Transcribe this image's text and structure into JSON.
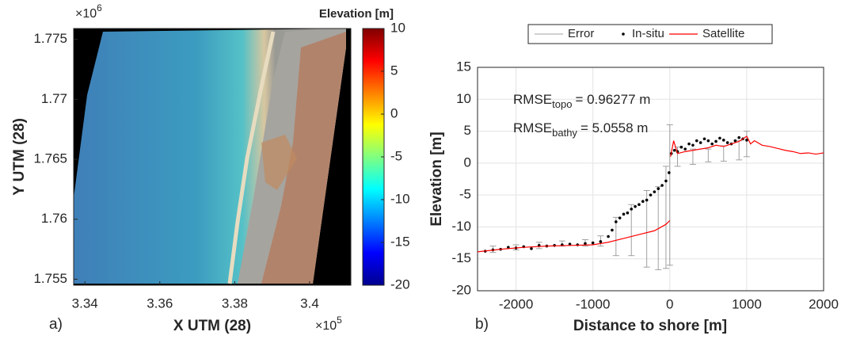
{
  "chart_data": [
    {
      "type": "map",
      "panel_label": "a)",
      "xlabel": "X UTM (28)",
      "ylabel": "Y UTM (28)",
      "x_multiplier": {
        "base": "×10",
        "power": "5"
      },
      "y_multiplier": {
        "base": "×10",
        "power": "6"
      },
      "xlim": [
        3.337,
        3.411
      ],
      "xticks": [
        3.34,
        3.36,
        3.38,
        3.4
      ],
      "ylim": [
        1.7545,
        1.7759
      ],
      "yticks": [
        1.755,
        1.76,
        1.765,
        1.77,
        1.775
      ],
      "colorbar": {
        "label": "Elevation [m]",
        "lim": [
          -20,
          10
        ],
        "ticks": [
          -20,
          -15,
          -10,
          -5,
          0,
          5,
          10
        ],
        "colormap": [
          "#00008f",
          "#0000ff",
          "#0080ff",
          "#00ffff",
          "#80ff80",
          "#ffff00",
          "#ff8000",
          "#ff0000",
          "#800000"
        ]
      }
    },
    {
      "type": "line",
      "panel_label": "b)",
      "xlabel": "Distance to shore [m]",
      "ylabel": "Elevation [m]",
      "xlim": [
        -2500,
        2000
      ],
      "xticks": [
        -2000,
        -1000,
        0,
        1000,
        2000
      ],
      "ylim": [
        -20,
        15
      ],
      "yticks": [
        -20,
        -15,
        -10,
        -5,
        0,
        5,
        10,
        15
      ],
      "grid": true,
      "legend": "top",
      "annotations": [
        {
          "text": "RMSE",
          "sub": "topo",
          "rest": "= 0.96277 m"
        },
        {
          "text": "RMSE",
          "sub": "bathy",
          "rest": "= 5.0558 m"
        }
      ],
      "series": [
        {
          "name": "Error",
          "color": "#a0a0a0",
          "kind": "errorbar",
          "x": [
            -2300,
            -2000,
            -1700,
            -1400,
            -1100,
            -900,
            -700,
            -500,
            -300,
            -150,
            -50,
            0,
            100,
            300,
            500,
            700,
            900,
            1000
          ],
          "values": [
            -13.5,
            -13.2,
            -12.9,
            -12.6,
            -12.5,
            -12.2,
            -11.5,
            -10.5,
            -10.3,
            -10.2,
            -8.5,
            -5,
            1,
            1,
            1.2,
            1.5,
            2,
            3
          ],
          "errors": [
            0.5,
            0.4,
            0.5,
            0.4,
            0.5,
            0.8,
            3,
            4,
            6,
            6.5,
            8,
            11,
            1.5,
            1.2,
            1,
            1.2,
            1.5,
            2
          ]
        },
        {
          "name": "In-situ",
          "color": "#000000",
          "kind": "dots",
          "x": [
            -2400,
            -2300,
            -2200,
            -2100,
            -2000,
            -1900,
            -1800,
            -1700,
            -1600,
            -1500,
            -1400,
            -1300,
            -1200,
            -1100,
            -1000,
            -900,
            -800,
            -750,
            -700,
            -650,
            -600,
            -550,
            -500,
            -450,
            -400,
            -350,
            -300,
            -250,
            -200,
            -150,
            -100,
            -50,
            -10,
            20,
            60,
            100,
            150,
            200,
            250,
            300,
            350,
            400,
            450,
            500,
            550,
            600,
            650,
            700,
            750,
            800,
            850,
            900,
            950,
            1000
          ],
          "values": [
            -13.8,
            -13.6,
            -13.5,
            -13.2,
            -13.3,
            -13.1,
            -13.4,
            -12.9,
            -13,
            -12.9,
            -12.8,
            -12.7,
            -12.8,
            -12.6,
            -12.5,
            -12.3,
            -11.5,
            -10.5,
            -9.2,
            -8.6,
            -8,
            -7.8,
            -7.2,
            -6.8,
            -6.5,
            -6,
            -5.8,
            -5,
            -4.5,
            -4,
            -3.5,
            -2.8,
            -1.5,
            1.5,
            2,
            1.8,
            2.5,
            2.2,
            3,
            2.8,
            3.5,
            3.2,
            3.8,
            3.5,
            3,
            3.4,
            3.9,
            3.6,
            3.2,
            3,
            3.5,
            4,
            3.8,
            3.6
          ]
        },
        {
          "name": "Satellite",
          "color": "#ff0000",
          "kind": "line",
          "x": [
            -2500,
            -2200,
            -1900,
            -1600,
            -1300,
            -1000,
            -800,
            -600,
            -400,
            -200,
            -50,
            0,
            null,
            10,
            50,
            100,
            200,
            300,
            400,
            500,
            600,
            700,
            800,
            900,
            1000,
            1050,
            1100,
            1200,
            1300,
            1400,
            1500,
            1600,
            1700,
            1800,
            1900,
            2000
          ],
          "values": [
            -13.9,
            -13.5,
            -13.2,
            -13,
            -12.9,
            -12.8,
            -12.4,
            -11.8,
            -11.2,
            -10.6,
            -9.6,
            -9,
            null,
            1,
            3.5,
            1.5,
            1.8,
            2,
            2.2,
            2.4,
            2.8,
            2.6,
            3,
            3.4,
            4.2,
            3,
            3.5,
            2.8,
            2.6,
            2.3,
            2,
            1.8,
            1.5,
            1.6,
            1.4,
            1.6
          ]
        }
      ]
    }
  ]
}
